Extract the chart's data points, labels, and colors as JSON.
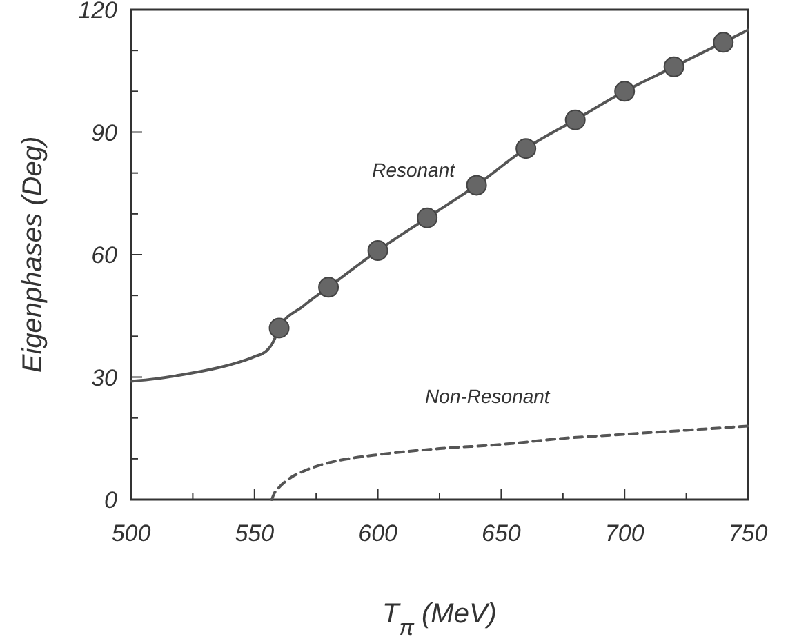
{
  "chart_data": {
    "type": "line",
    "xlabel": "T$_{π}$ (MeV)",
    "ylabel": "Eigenphases (Deg)",
    "xlim": [
      500,
      750
    ],
    "ylim": [
      0,
      120
    ],
    "xticks": [
      500,
      {
        "value": 525,
        "label": null
      },
      550,
      {
        "value": 575,
        "label": null
      },
      600,
      {
        "value": 625,
        "label": null
      },
      650,
      {
        "value": 675,
        "label": null
      },
      700,
      {
        "value": 725,
        "label": null
      },
      750
    ],
    "yticks": [
      0,
      {
        "value": 10,
        "label": null
      },
      {
        "value": 20,
        "label": null
      },
      30,
      {
        "value": 40,
        "label": null
      },
      {
        "value": 50,
        "label": null
      },
      60,
      {
        "value": 70,
        "label": null
      },
      {
        "value": 80,
        "label": null
      },
      90,
      {
        "value": 100,
        "label": null
      },
      {
        "value": 110,
        "label": null
      },
      120
    ],
    "grid": false,
    "series": [
      {
        "name": "Resonant",
        "color": "#555555",
        "line_style": "solid",
        "marker": "none",
        "x": [
          500,
          510,
          520,
          530,
          540,
          550,
          555,
          557,
          559,
          560,
          570,
          580,
          600,
          620,
          640,
          660,
          680,
          700,
          720,
          740,
          750
        ],
        "values": [
          29,
          29.6,
          30.5,
          31.6,
          33,
          35,
          36.5,
          38,
          40.5,
          42,
          47.5,
          52,
          61,
          69,
          77,
          86,
          93,
          100,
          106,
          112,
          115
        ]
      },
      {
        "type": "scatter",
        "color": "#666666",
        "marker": "circle",
        "x": [
          560,
          580,
          600,
          620,
          640,
          660,
          680,
          700,
          720,
          740
        ],
        "values": [
          42,
          52,
          61,
          69,
          77,
          86,
          93,
          100,
          106,
          112
        ]
      },
      {
        "name": "Non-Resonant",
        "color": "#555555",
        "line_style": "dashed",
        "marker": "none",
        "x": [
          557,
          558,
          560,
          565,
          570,
          580,
          590,
          600,
          625,
          650,
          675,
          700,
          725,
          750
        ],
        "values": [
          0,
          1.5,
          3,
          5.5,
          7,
          9,
          10.2,
          11,
          12.5,
          13.5,
          15,
          16,
          17,
          18
        ]
      }
    ]
  }
}
